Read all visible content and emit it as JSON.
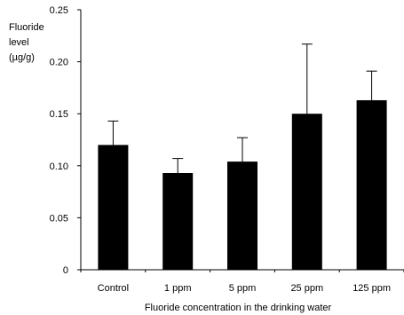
{
  "chart_data": {
    "type": "bar",
    "categories": [
      "Control",
      "1 ppm",
      "5 ppm",
      "25 ppm",
      "125 ppm"
    ],
    "values": [
      0.12,
      0.093,
      0.104,
      0.15,
      0.163
    ],
    "error_upper": [
      0.143,
      0.107,
      0.127,
      0.217,
      0.191
    ],
    "ylabel_lines": [
      "Fluoride",
      "level",
      "(µg/g)"
    ],
    "xlabel": "Fluoride concentration in the drinking water",
    "ylim": [
      0,
      0.25
    ],
    "yticks": [
      "0",
      "0.05",
      "0.10",
      "0.15",
      "0.20",
      "0.25"
    ],
    "bar_color": "#000000",
    "grid": false
  }
}
